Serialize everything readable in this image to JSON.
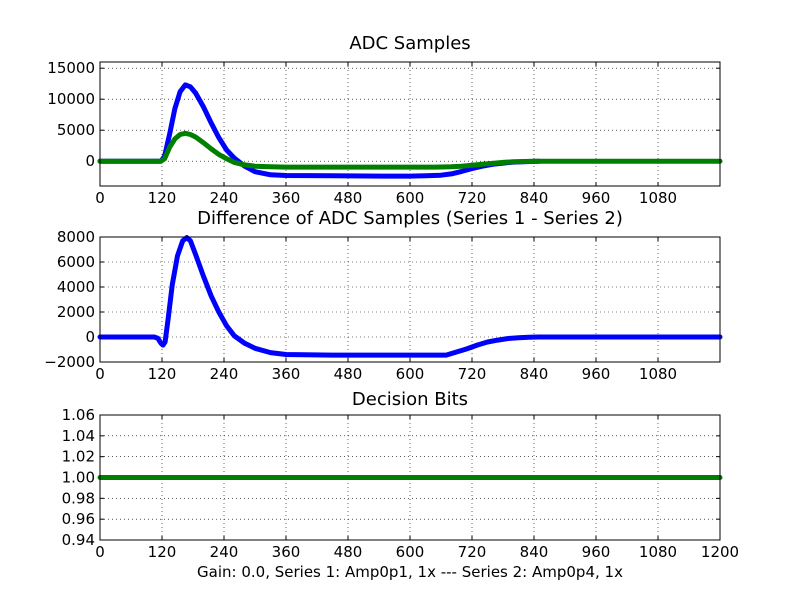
{
  "figure": {
    "caption": "Gain: 0.0, Series 1: Amp0p1, 1x --- Series 2: Amp0p4, 1x"
  },
  "colors": {
    "series_1": "#0000ff",
    "series_2": "#007f00"
  },
  "chart_data": [
    {
      "type": "scatter",
      "title": "ADC Samples",
      "xlim": [
        0,
        1200
      ],
      "ylim": [
        -4000,
        16000
      ],
      "grid": true,
      "x_ticks": [
        "0",
        "120",
        "240",
        "360",
        "480",
        "600",
        "720",
        "840",
        "960",
        "1080"
      ],
      "y_ticks": [
        "0",
        "5000",
        "10000",
        "15000"
      ],
      "series": [
        {
          "color": "#0000ff",
          "x": [
            0,
            110,
            118,
            125,
            135,
            145,
            155,
            165,
            175,
            185,
            200,
            215,
            230,
            245,
            260,
            280,
            300,
            330,
            360,
            450,
            550,
            600,
            630,
            660,
            680,
            700,
            720,
            740,
            760,
            780,
            800,
            820,
            840,
            850
          ],
          "y": [
            0,
            0,
            0,
            800,
            4500,
            8500,
            11200,
            12300,
            12000,
            11000,
            8800,
            6200,
            3800,
            1800,
            500,
            -800,
            -1700,
            -2200,
            -2300,
            -2350,
            -2400,
            -2400,
            -2350,
            -2250,
            -2050,
            -1650,
            -1200,
            -800,
            -500,
            -300,
            -150,
            -80,
            -30,
            0
          ]
        },
        {
          "color": "#007f00",
          "x": [
            0,
            110,
            118,
            125,
            135,
            145,
            155,
            165,
            175,
            185,
            200,
            215,
            230,
            245,
            260,
            280,
            300,
            330,
            360,
            450,
            550,
            600,
            650,
            680,
            700,
            720,
            740,
            760,
            780,
            800,
            820,
            840,
            900,
            1000,
            1100,
            1200
          ],
          "y": [
            0,
            0,
            0,
            400,
            2300,
            3600,
            4300,
            4500,
            4300,
            3900,
            3000,
            2000,
            1100,
            400,
            -200,
            -600,
            -800,
            -900,
            -950,
            -950,
            -950,
            -950,
            -950,
            -900,
            -800,
            -650,
            -500,
            -350,
            -200,
            -100,
            -50,
            0,
            0,
            0,
            0,
            0
          ]
        }
      ]
    },
    {
      "type": "scatter",
      "title": "Difference of ADC Samples (Series 1 - Series 2)",
      "xlim": [
        0,
        1200
      ],
      "ylim": [
        -2000,
        8000
      ],
      "grid": true,
      "x_ticks": [
        "0",
        "120",
        "240",
        "360",
        "480",
        "600",
        "720",
        "840",
        "960",
        "1080"
      ],
      "y_ticks": [
        "−2000",
        "0",
        "2000",
        "4000",
        "6000",
        "8000"
      ],
      "series": [
        {
          "color": "#0000ff",
          "x": [
            0,
            105,
            112,
            118,
            122,
            126,
            132,
            140,
            150,
            160,
            168,
            175,
            185,
            200,
            215,
            230,
            245,
            260,
            280,
            300,
            330,
            360,
            450,
            550,
            600,
            650,
            670,
            690,
            710,
            730,
            750,
            770,
            790,
            810,
            830,
            850,
            900,
            1000,
            1100,
            1200
          ],
          "y": [
            0,
            0,
            -100,
            -500,
            -650,
            -400,
            1500,
            4200,
            6500,
            7700,
            7950,
            7700,
            6600,
            4900,
            3300,
            2000,
            900,
            100,
            -500,
            -900,
            -1250,
            -1400,
            -1450,
            -1450,
            -1450,
            -1450,
            -1450,
            -1200,
            -950,
            -650,
            -400,
            -250,
            -120,
            -60,
            -20,
            0,
            0,
            0,
            0,
            0
          ]
        }
      ]
    },
    {
      "type": "scatter",
      "title": "Decision Bits",
      "xlim": [
        0,
        1200
      ],
      "ylim": [
        0.94,
        1.06
      ],
      "grid": true,
      "x_ticks": [
        "0",
        "120",
        "240",
        "360",
        "480",
        "600",
        "720",
        "840",
        "960",
        "1080",
        "1200"
      ],
      "y_ticks": [
        "0.94",
        "0.96",
        "0.98",
        "1.00",
        "1.02",
        "1.04",
        "1.06"
      ],
      "series": [
        {
          "color": "#007f00",
          "x": [
            0,
            1200
          ],
          "y": [
            1.0,
            1.0
          ]
        }
      ]
    }
  ]
}
